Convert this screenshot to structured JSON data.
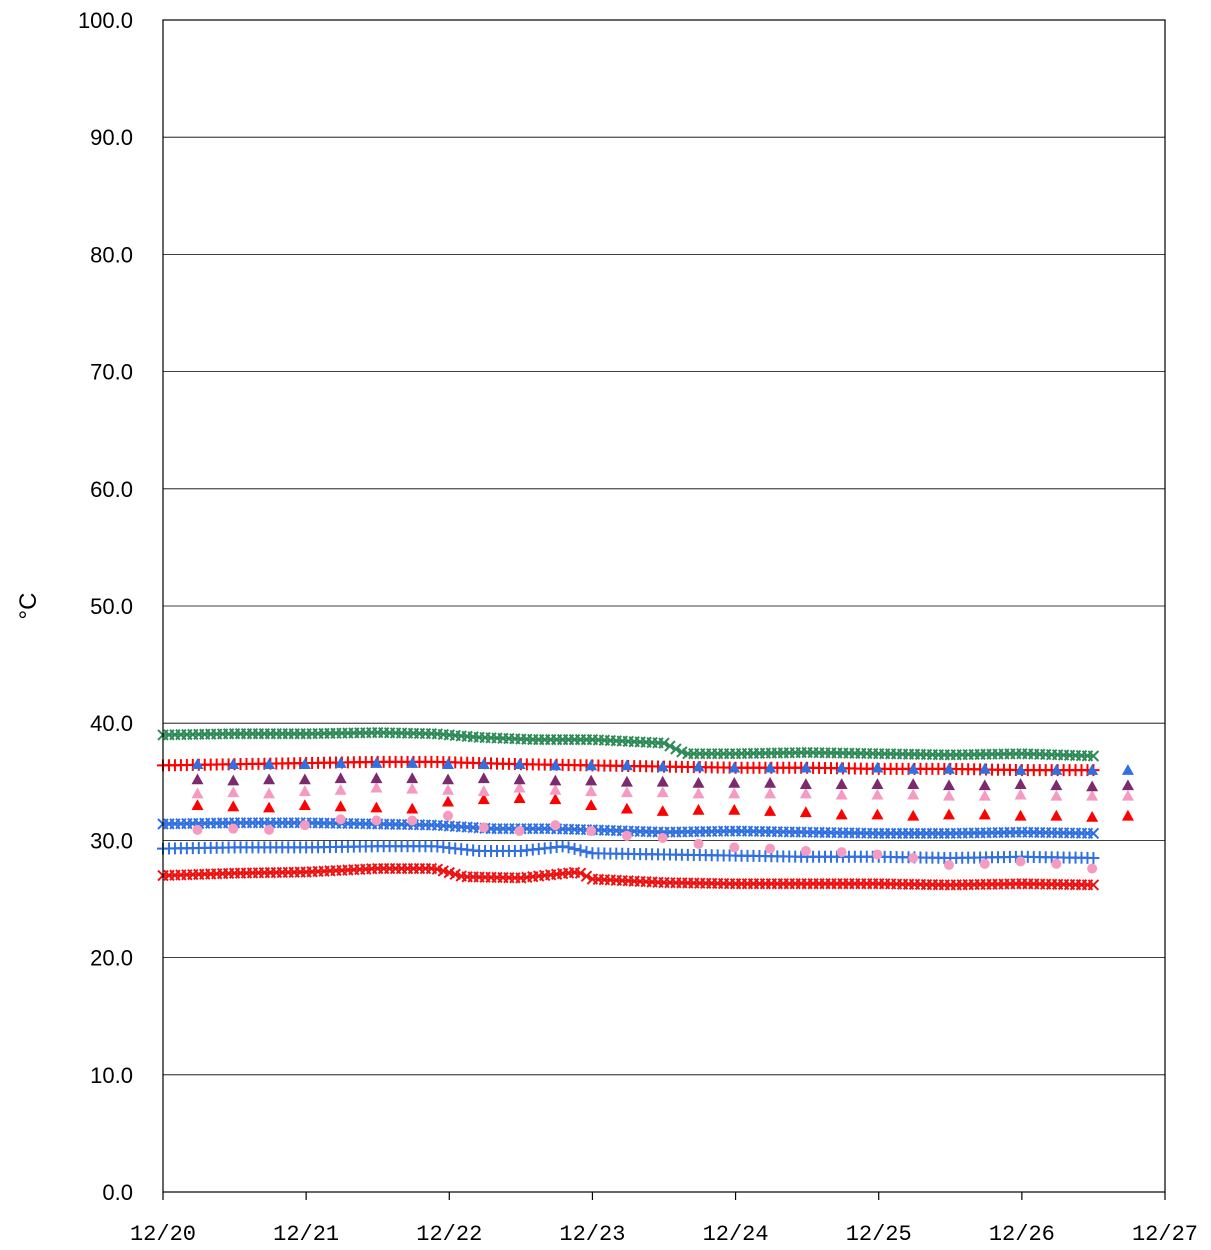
{
  "chart_data": {
    "type": "scatter",
    "title": "",
    "xlabel": "",
    "ylabel": "°C",
    "x_ticks": [
      "12/20",
      "12/21",
      "12/22",
      "12/23",
      "12/24",
      "12/25",
      "12/26",
      "12/27"
    ],
    "x_range": [
      0,
      7
    ],
    "y_ticks": [
      "0.0",
      "10.0",
      "20.0",
      "30.0",
      "40.0",
      "50.0",
      "60.0",
      "70.0",
      "80.0",
      "90.0",
      "100.0"
    ],
    "ylim": [
      0,
      100
    ],
    "grid": "horizontal",
    "legend": "none",
    "series": [
      {
        "marker": "x",
        "color": "#2e8b57",
        "points": [
          [
            0.0,
            39.0
          ],
          [
            0.5,
            39.1
          ],
          [
            1.0,
            39.1
          ],
          [
            1.5,
            39.2
          ],
          [
            1.9,
            39.1
          ],
          [
            2.2,
            38.8
          ],
          [
            2.6,
            38.6
          ],
          [
            3.0,
            38.6
          ],
          [
            3.5,
            38.3
          ],
          [
            3.65,
            37.4
          ],
          [
            4.0,
            37.4
          ],
          [
            4.5,
            37.5
          ],
          [
            5.0,
            37.4
          ],
          [
            5.5,
            37.3
          ],
          [
            6.0,
            37.4
          ],
          [
            6.5,
            37.2
          ]
        ]
      },
      {
        "marker": "+",
        "color": "#ff0000",
        "points": [
          [
            0.0,
            36.4
          ],
          [
            0.5,
            36.5
          ],
          [
            1.0,
            36.6
          ],
          [
            1.5,
            36.7
          ],
          [
            1.9,
            36.7
          ],
          [
            2.5,
            36.5
          ],
          [
            3.0,
            36.4
          ],
          [
            3.5,
            36.3
          ],
          [
            4.0,
            36.2
          ],
          [
            4.5,
            36.2
          ],
          [
            5.0,
            36.1
          ],
          [
            5.5,
            36.1
          ],
          [
            6.0,
            36.0
          ],
          [
            6.5,
            36.0
          ]
        ]
      },
      {
        "marker": "+",
        "color": "#3070e0",
        "points": [
          [
            0.0,
            29.3
          ],
          [
            0.5,
            29.4
          ],
          [
            1.0,
            29.4
          ],
          [
            1.5,
            29.5
          ],
          [
            1.9,
            29.5
          ],
          [
            2.2,
            29.1
          ],
          [
            2.5,
            29.1
          ],
          [
            2.8,
            29.5
          ],
          [
            3.0,
            28.9
          ],
          [
            3.5,
            28.8
          ],
          [
            4.0,
            28.7
          ],
          [
            4.5,
            28.6
          ],
          [
            5.0,
            28.6
          ],
          [
            5.5,
            28.5
          ],
          [
            6.0,
            28.6
          ],
          [
            6.5,
            28.5
          ]
        ]
      },
      {
        "marker": "x",
        "color": "#3070e0",
        "points": [
          [
            0.0,
            31.4
          ],
          [
            0.5,
            31.5
          ],
          [
            1.0,
            31.5
          ],
          [
            1.5,
            31.4
          ],
          [
            1.9,
            31.3
          ],
          [
            2.3,
            31.0
          ],
          [
            2.7,
            31.0
          ],
          [
            3.0,
            30.9
          ],
          [
            3.5,
            30.7
          ],
          [
            4.0,
            30.8
          ],
          [
            4.5,
            30.7
          ],
          [
            5.0,
            30.6
          ],
          [
            5.5,
            30.6
          ],
          [
            6.0,
            30.7
          ],
          [
            6.5,
            30.6
          ]
        ]
      },
      {
        "marker": "x",
        "color": "#ee1111",
        "points": [
          [
            0.0,
            27.0
          ],
          [
            0.5,
            27.2
          ],
          [
            1.0,
            27.3
          ],
          [
            1.5,
            27.6
          ],
          [
            1.9,
            27.6
          ],
          [
            2.1,
            26.9
          ],
          [
            2.5,
            26.8
          ],
          [
            2.9,
            27.3
          ],
          [
            3.0,
            26.7
          ],
          [
            3.5,
            26.4
          ],
          [
            4.0,
            26.3
          ],
          [
            4.5,
            26.3
          ],
          [
            5.0,
            26.3
          ],
          [
            5.5,
            26.2
          ],
          [
            6.0,
            26.3
          ],
          [
            6.5,
            26.2
          ]
        ]
      },
      {
        "marker": "triangle",
        "color": "#ff0000",
        "points": [
          [
            0.0,
            33.0
          ],
          [
            0.25,
            32.9
          ],
          [
            0.5,
            32.8
          ],
          [
            0.75,
            33.0
          ],
          [
            1.0,
            32.9
          ],
          [
            1.25,
            32.8
          ],
          [
            1.5,
            32.7
          ],
          [
            1.75,
            33.3
          ],
          [
            2.0,
            33.5
          ],
          [
            2.25,
            33.6
          ],
          [
            2.5,
            33.5
          ],
          [
            2.75,
            33.0
          ],
          [
            3.0,
            32.7
          ],
          [
            3.25,
            32.5
          ],
          [
            3.5,
            32.6
          ],
          [
            3.75,
            32.6
          ],
          [
            4.0,
            32.5
          ],
          [
            4.25,
            32.4
          ],
          [
            4.5,
            32.2
          ],
          [
            4.75,
            32.2
          ],
          [
            5.0,
            32.1
          ],
          [
            5.25,
            32.2
          ],
          [
            5.5,
            32.2
          ],
          [
            5.75,
            32.1
          ],
          [
            6.0,
            32.1
          ],
          [
            6.25,
            32.0
          ],
          [
            6.5,
            32.1
          ]
        ]
      },
      {
        "marker": "circle",
        "color": "#f59ac0",
        "points": [
          [
            0.0,
            30.9
          ],
          [
            0.25,
            31.0
          ],
          [
            0.5,
            30.9
          ],
          [
            0.75,
            31.3
          ],
          [
            1.0,
            31.8
          ],
          [
            1.25,
            31.7
          ],
          [
            1.5,
            31.7
          ],
          [
            1.75,
            32.1
          ],
          [
            2.0,
            31.1
          ],
          [
            2.25,
            30.8
          ],
          [
            2.5,
            31.3
          ],
          [
            2.75,
            30.8
          ],
          [
            3.0,
            30.4
          ],
          [
            3.25,
            30.2
          ],
          [
            3.5,
            29.7
          ],
          [
            3.75,
            29.4
          ],
          [
            4.0,
            29.3
          ],
          [
            4.25,
            29.1
          ],
          [
            4.5,
            29.0
          ],
          [
            4.75,
            28.8
          ],
          [
            5.0,
            28.5
          ],
          [
            5.25,
            27.9
          ],
          [
            5.5,
            28.0
          ],
          [
            5.75,
            28.2
          ],
          [
            6.0,
            28.0
          ],
          [
            6.25,
            27.6
          ]
        ]
      },
      {
        "marker": "triangle",
        "color": "#f59ac0",
        "points": [
          [
            0.0,
            34.0
          ],
          [
            0.25,
            34.1
          ],
          [
            0.5,
            34.0
          ],
          [
            0.75,
            34.2
          ],
          [
            1.0,
            34.3
          ],
          [
            1.25,
            34.5
          ],
          [
            1.5,
            34.4
          ],
          [
            1.75,
            34.3
          ],
          [
            2.0,
            34.2
          ],
          [
            2.25,
            34.5
          ],
          [
            2.5,
            34.3
          ],
          [
            2.75,
            34.2
          ],
          [
            3.0,
            34.1
          ],
          [
            3.25,
            34.1
          ],
          [
            3.5,
            34.0
          ],
          [
            3.75,
            34.0
          ],
          [
            4.0,
            34.0
          ],
          [
            4.25,
            34.0
          ],
          [
            4.5,
            33.9
          ],
          [
            4.75,
            33.9
          ],
          [
            5.0,
            33.9
          ],
          [
            5.25,
            33.8
          ],
          [
            5.5,
            33.8
          ],
          [
            5.75,
            33.9
          ],
          [
            6.0,
            33.8
          ],
          [
            6.25,
            33.8
          ],
          [
            6.5,
            33.8
          ]
        ]
      },
      {
        "marker": "triangle",
        "color": "#7b2a6e",
        "points": [
          [
            0.0,
            35.2
          ],
          [
            0.25,
            35.1
          ],
          [
            0.5,
            35.2
          ],
          [
            0.75,
            35.2
          ],
          [
            1.0,
            35.3
          ],
          [
            1.25,
            35.3
          ],
          [
            1.5,
            35.3
          ],
          [
            1.75,
            35.2
          ],
          [
            2.0,
            35.3
          ],
          [
            2.25,
            35.2
          ],
          [
            2.5,
            35.1
          ],
          [
            2.75,
            35.1
          ],
          [
            3.0,
            35.0
          ],
          [
            3.25,
            35.0
          ],
          [
            3.5,
            34.9
          ],
          [
            3.75,
            34.9
          ],
          [
            4.0,
            34.9
          ],
          [
            4.25,
            34.8
          ],
          [
            4.5,
            34.8
          ],
          [
            4.75,
            34.8
          ],
          [
            5.0,
            34.8
          ],
          [
            5.25,
            34.7
          ],
          [
            5.5,
            34.7
          ],
          [
            5.75,
            34.8
          ],
          [
            6.0,
            34.7
          ],
          [
            6.25,
            34.6
          ],
          [
            6.5,
            34.7
          ]
        ]
      },
      {
        "marker": "triangle",
        "color": "#3070e0",
        "points": [
          [
            0.0,
            36.5
          ],
          [
            0.25,
            36.5
          ],
          [
            0.5,
            36.5
          ],
          [
            0.75,
            36.5
          ],
          [
            1.0,
            36.6
          ],
          [
            1.25,
            36.6
          ],
          [
            1.5,
            36.6
          ],
          [
            1.75,
            36.5
          ],
          [
            2.0,
            36.5
          ],
          [
            2.25,
            36.5
          ],
          [
            2.5,
            36.4
          ],
          [
            2.75,
            36.4
          ],
          [
            3.0,
            36.4
          ],
          [
            3.25,
            36.3
          ],
          [
            3.5,
            36.3
          ],
          [
            3.75,
            36.2
          ],
          [
            4.0,
            36.2
          ],
          [
            4.25,
            36.2
          ],
          [
            4.5,
            36.2
          ],
          [
            4.75,
            36.2
          ],
          [
            5.0,
            36.1
          ],
          [
            5.25,
            36.1
          ],
          [
            5.5,
            36.1
          ],
          [
            5.75,
            36.0
          ],
          [
            6.0,
            36.0
          ],
          [
            6.25,
            36.0
          ],
          [
            6.5,
            36.0
          ]
        ]
      }
    ]
  }
}
